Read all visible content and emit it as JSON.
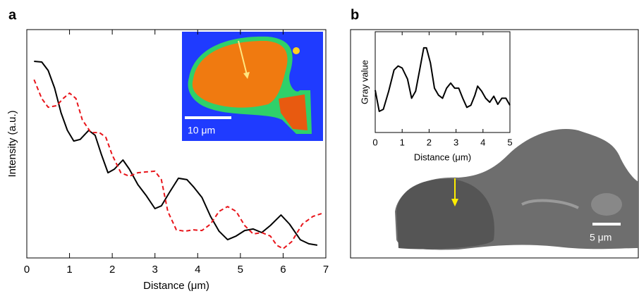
{
  "chart_data": [
    {
      "type": "line",
      "panel": "a",
      "xlabel": "Distance (μm)",
      "ylabel": "Intensity (a.u.)",
      "scale_bar": "10 μm",
      "xlim": [
        0,
        7
      ],
      "xticks": [
        0,
        1,
        2,
        3,
        4,
        5,
        6,
        7
      ],
      "ylim": [
        0,
        1
      ],
      "series": [
        {
          "color": "#000000",
          "dash": false,
          "x": [
            0.17,
            0.35,
            0.5,
            0.65,
            0.8,
            0.95,
            1.1,
            1.25,
            1.45,
            1.6,
            1.75,
            1.9,
            2.05,
            2.25,
            2.4,
            2.6,
            2.8,
            3.0,
            3.15,
            3.35,
            3.55,
            3.75,
            3.9,
            4.1,
            4.3,
            4.5,
            4.7,
            4.9,
            5.1,
            5.3,
            5.5,
            5.7,
            5.95,
            6.15,
            6.4,
            6.6,
            6.8
          ],
          "values": [
            0.861,
            0.858,
            0.821,
            0.744,
            0.636,
            0.559,
            0.512,
            0.519,
            0.559,
            0.537,
            0.451,
            0.373,
            0.389,
            0.429,
            0.389,
            0.321,
            0.272,
            0.216,
            0.228,
            0.29,
            0.349,
            0.343,
            0.312,
            0.265,
            0.182,
            0.117,
            0.08,
            0.096,
            0.12,
            0.127,
            0.111,
            0.142,
            0.188,
            0.148,
            0.08,
            0.062,
            0.056
          ]
        },
        {
          "color": "#e8151b",
          "dash": true,
          "x": [
            0.17,
            0.35,
            0.5,
            0.7,
            0.85,
            1.0,
            1.15,
            1.3,
            1.5,
            1.7,
            1.85,
            2.0,
            2.2,
            2.4,
            2.6,
            2.8,
            3.0,
            3.15,
            3.3,
            3.5,
            3.7,
            3.9,
            4.1,
            4.3,
            4.5,
            4.7,
            4.9,
            5.1,
            5.3,
            5.5,
            5.7,
            5.85,
            6.0,
            6.2,
            6.45,
            6.7,
            6.9
          ],
          "values": [
            0.781,
            0.698,
            0.66,
            0.667,
            0.698,
            0.722,
            0.698,
            0.605,
            0.549,
            0.549,
            0.528,
            0.451,
            0.373,
            0.358,
            0.373,
            0.377,
            0.38,
            0.343,
            0.204,
            0.123,
            0.117,
            0.123,
            0.12,
            0.148,
            0.204,
            0.225,
            0.204,
            0.142,
            0.105,
            0.111,
            0.096,
            0.056,
            0.04,
            0.071,
            0.148,
            0.182,
            0.194
          ]
        }
      ]
    },
    {
      "type": "line",
      "panel": "b",
      "xlabel": "Distance (μm)",
      "ylabel": "Gray value",
      "scale_bar": "5 μm",
      "xlim": [
        0,
        5
      ],
      "xticks": [
        0,
        1,
        2,
        3,
        4,
        5
      ],
      "ylim": [
        0,
        1
      ],
      "series": [
        {
          "color": "#000000",
          "dash": false,
          "x": [
            0,
            0.15,
            0.3,
            0.5,
            0.7,
            0.85,
            1.0,
            1.2,
            1.35,
            1.5,
            1.65,
            1.8,
            1.9,
            2.05,
            2.2,
            2.35,
            2.5,
            2.65,
            2.8,
            2.95,
            3.1,
            3.25,
            3.4,
            3.55,
            3.7,
            3.8,
            3.95,
            4.1,
            4.25,
            4.4,
            4.55,
            4.7,
            4.85,
            5.0
          ],
          "values": [
            0.42,
            0.21,
            0.23,
            0.41,
            0.62,
            0.66,
            0.64,
            0.53,
            0.34,
            0.41,
            0.62,
            0.84,
            0.84,
            0.69,
            0.44,
            0.37,
            0.34,
            0.44,
            0.49,
            0.44,
            0.44,
            0.34,
            0.25,
            0.27,
            0.37,
            0.46,
            0.41,
            0.34,
            0.3,
            0.36,
            0.28,
            0.34,
            0.34,
            0.27
          ]
        }
      ]
    }
  ]
}
